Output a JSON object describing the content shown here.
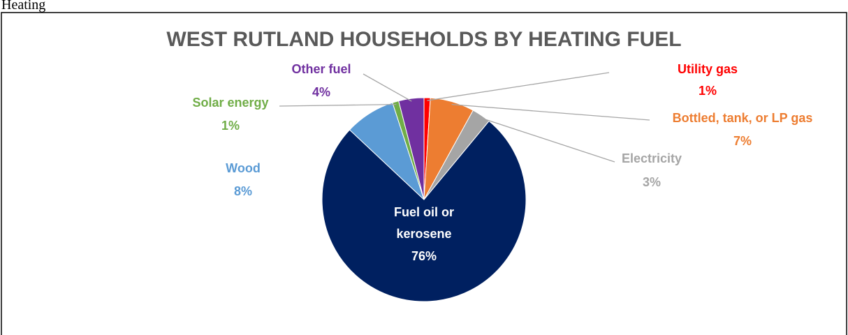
{
  "page_heading": "Heating",
  "chart_data": {
    "type": "pie",
    "title": "WEST RUTLAND HOUSEHOLDS BY HEATING FUEL",
    "categories": [
      "Utility gas",
      "Bottled, tank, or LP gas",
      "Electricity",
      "Fuel oil or kerosene",
      "Wood",
      "Solar energy",
      "Other fuel"
    ],
    "values": [
      1,
      7,
      3,
      76,
      8,
      1,
      4
    ],
    "value_labels": [
      "1%",
      "7%",
      "3%",
      "76%",
      "8%",
      "1%",
      "4%"
    ],
    "colors": [
      "#ff0000",
      "#ed7d31",
      "#a5a5a5",
      "#002060",
      "#5b9bd5",
      "#70ad47",
      "#7030a0"
    ]
  }
}
